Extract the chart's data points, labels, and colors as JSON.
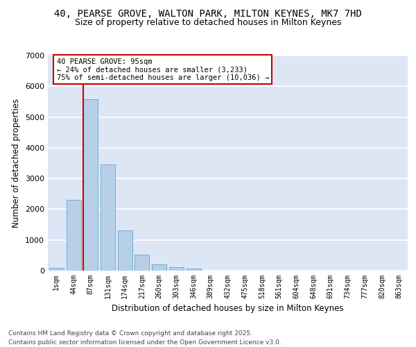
{
  "title_line1": "40, PEARSE GROVE, WALTON PARK, MILTON KEYNES, MK7 7HD",
  "title_line2": "Size of property relative to detached houses in Milton Keynes",
  "xlabel": "Distribution of detached houses by size in Milton Keynes",
  "ylabel": "Number of detached properties",
  "categories": [
    "1sqm",
    "44sqm",
    "87sqm",
    "131sqm",
    "174sqm",
    "217sqm",
    "260sqm",
    "303sqm",
    "346sqm",
    "389sqm",
    "432sqm",
    "475sqm",
    "518sqm",
    "561sqm",
    "604sqm",
    "648sqm",
    "691sqm",
    "734sqm",
    "777sqm",
    "820sqm",
    "863sqm"
  ],
  "values": [
    100,
    2300,
    5580,
    3450,
    1300,
    520,
    200,
    120,
    60,
    10,
    5,
    2,
    0,
    0,
    0,
    0,
    0,
    0,
    0,
    0,
    0
  ],
  "bar_color": "#b8cfe8",
  "bar_edge_color": "#6baed6",
  "vline_color": "#cc0000",
  "vline_x_index": 2,
  "annotation_title": "40 PEARSE GROVE: 95sqm",
  "annotation_line1": "← 24% of detached houses are smaller (3,233)",
  "annotation_line2": "75% of semi-detached houses are larger (10,036) →",
  "annotation_box_edgecolor": "#cc0000",
  "ylim": [
    0,
    7000
  ],
  "yticks": [
    0,
    1000,
    2000,
    3000,
    4000,
    5000,
    6000,
    7000
  ],
  "footer_line1": "Contains HM Land Registry data © Crown copyright and database right 2025.",
  "footer_line2": "Contains public sector information licensed under the Open Government Licence v3.0.",
  "plot_bg_color": "#dce6f5",
  "fig_bg_color": "#ffffff",
  "grid_color": "#ffffff",
  "title_fontsize": 10,
  "subtitle_fontsize": 9,
  "axis_label_fontsize": 8.5,
  "tick_fontsize": 7,
  "annotation_fontsize": 7.5,
  "footer_fontsize": 6.5
}
